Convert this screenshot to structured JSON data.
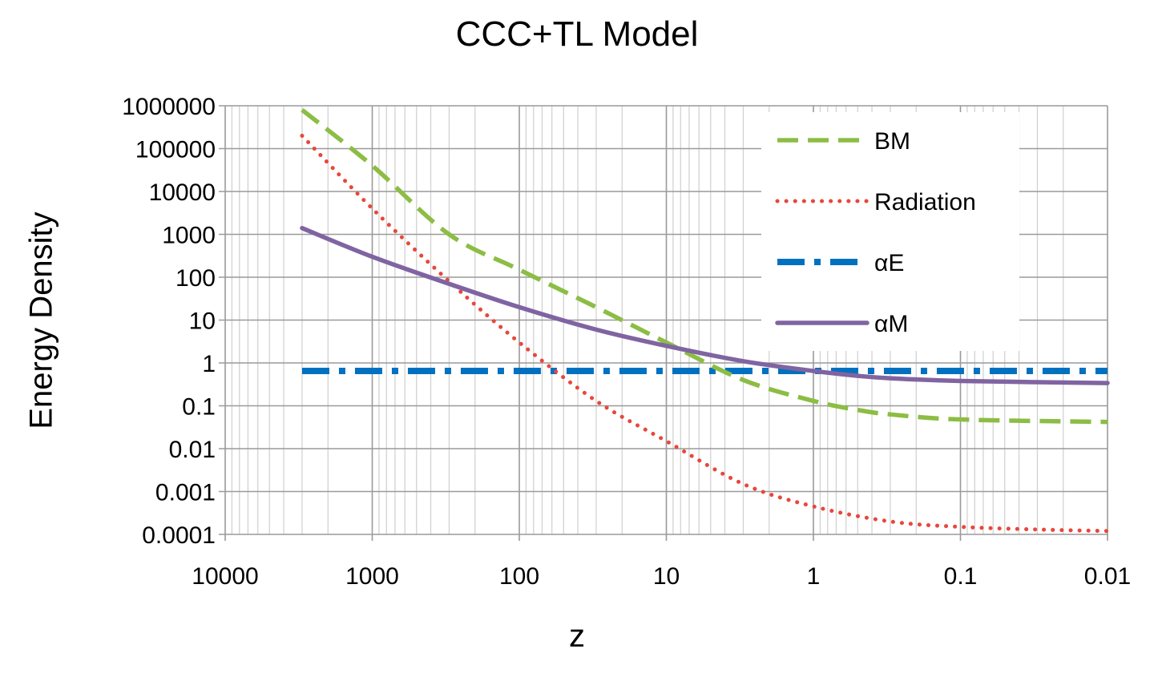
{
  "chart_data": {
    "type": "line",
    "title": "CCC+TL Model",
    "xlabel": "z",
    "ylabel": "Energy Density",
    "x_scale": "log",
    "x_reversed": true,
    "xlim": [
      10000,
      0.01
    ],
    "y_scale": "log",
    "ylim": [
      0.0001,
      1000000
    ],
    "grid": true,
    "legend_position": "top-right",
    "x_tick_labels": [
      "10000",
      "1000",
      "100",
      "10",
      "1",
      "0.1",
      "0.01"
    ],
    "y_tick_labels": [
      "1000000",
      "100000",
      "10000",
      "1000",
      "100",
      "10",
      "1",
      "0.1",
      "0.01",
      "0.001",
      "0.0001"
    ],
    "series": [
      {
        "name": "BM",
        "color": "#8cbd44",
        "style": "dashed",
        "x": [
          3000,
          1000,
          300,
          100,
          30,
          10,
          3,
          1,
          0.5,
          0.3,
          0.1,
          0.01
        ],
        "y": [
          800000,
          40000,
          1000,
          150,
          20,
          3,
          0.4,
          0.13,
          0.08,
          0.063,
          0.048,
          0.042
        ]
      },
      {
        "name": "Radiation",
        "color": "#e8473c",
        "style": "dotted",
        "x": [
          3000,
          1000,
          300,
          100,
          30,
          10,
          3,
          1,
          0.3,
          0.1,
          0.03,
          0.01
        ],
        "y": [
          200000,
          4000,
          80,
          3,
          0.13,
          0.015,
          0.0015,
          0.00045,
          0.0002,
          0.00015,
          0.00013,
          0.00012
        ]
      },
      {
        "name": "αE",
        "color": "#0070c0",
        "style": "dash-dot",
        "x": [
          3000,
          0.01
        ],
        "y": [
          0.65,
          0.65
        ]
      },
      {
        "name": "αM",
        "color": "#8064a2",
        "style": "solid",
        "x": [
          3000,
          1000,
          300,
          100,
          30,
          10,
          3,
          1,
          0.5,
          0.3,
          0.1,
          0.01
        ],
        "y": [
          1400,
          300,
          70,
          20,
          6,
          2.5,
          1.1,
          0.65,
          0.5,
          0.44,
          0.38,
          0.34
        ]
      }
    ]
  }
}
